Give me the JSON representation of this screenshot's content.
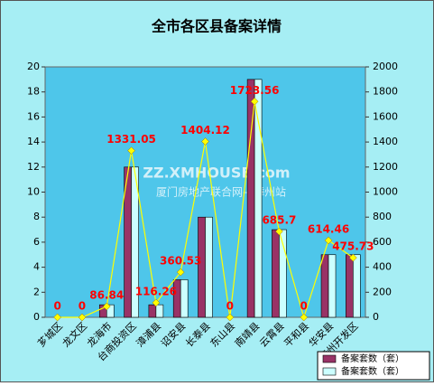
{
  "chart_data": {
    "type": "bar-line",
    "title": "全市各区县备案详情",
    "categories": [
      "芗城区",
      "龙文区",
      "龙海市",
      "台商投资区",
      "漳浦县",
      "诏安县",
      "长泰县",
      "东山县",
      "南靖县",
      "云霄县",
      "平和县",
      "华安县",
      "漳州开发区"
    ],
    "series": [
      {
        "name": "备案套数（套）",
        "color": "#993366",
        "values": [
          0,
          0,
          1,
          12,
          1,
          3,
          8,
          0,
          19,
          7,
          0,
          5,
          5
        ]
      },
      {
        "name": "备案套数（套）",
        "color": "#ccffff",
        "values": [
          0,
          0,
          1,
          12,
          1,
          3,
          8,
          0,
          19,
          7,
          0,
          5,
          5
        ]
      }
    ],
    "line": {
      "color": "#ffff00",
      "label_color": "#ff0000",
      "axis": "y2",
      "values": [
        0,
        0,
        86.84,
        1331.05,
        116.26,
        360.53,
        1404.12,
        0,
        1723.56,
        685.7,
        0,
        614.46,
        475.73
      ]
    },
    "ylim": [
      0,
      20
    ],
    "yticks": [
      0,
      2,
      4,
      6,
      8,
      10,
      12,
      14,
      16,
      18,
      20
    ],
    "y2lim": [
      0,
      2000
    ],
    "y2ticks": [
      0,
      200,
      400,
      600,
      800,
      1000,
      1200,
      1400,
      1600,
      1800,
      2000
    ],
    "watermark": [
      "ZZ.XMHOUSE.com",
      "厦门房地产联合网—漳州站"
    ],
    "legend": "bottom-right"
  }
}
